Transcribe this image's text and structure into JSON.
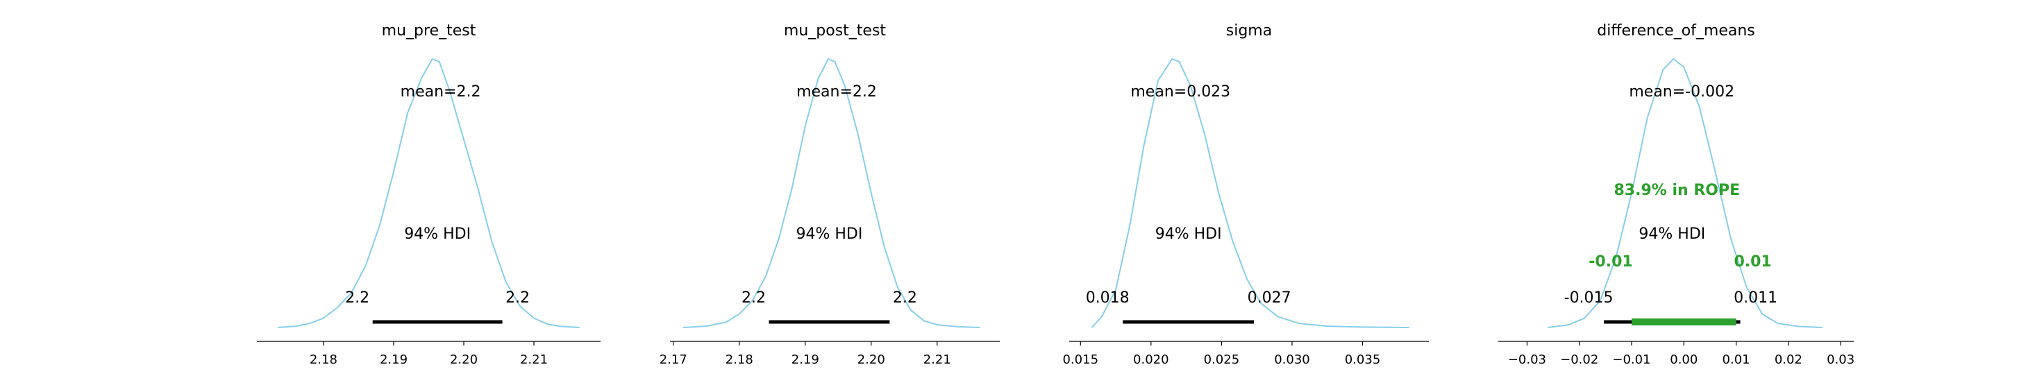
{
  "chart_data": [
    {
      "type": "area",
      "title": "mu_pre_test",
      "mean_label": "mean=2.2",
      "hdi_label": "94% HDI",
      "hdi": [
        2.187,
        2.2055
      ],
      "hdi_low_label": "2.2",
      "hdi_high_label": "2.2",
      "xlim": [
        2.1705,
        2.2195
      ],
      "xticks": [
        2.18,
        2.19,
        2.2,
        2.21
      ],
      "xtick_labels": [
        "2.18",
        "2.19",
        "2.20",
        "2.21"
      ],
      "density": {
        "x": [
          2.1735,
          2.176,
          2.178,
          2.18,
          2.182,
          2.184,
          2.186,
          2.188,
          2.19,
          2.192,
          2.194,
          2.1955,
          2.1965,
          2.198,
          2.2,
          2.202,
          2.204,
          2.206,
          2.208,
          2.21,
          2.212,
          2.214,
          2.2165
        ],
        "y": [
          0.0,
          0.005,
          0.015,
          0.035,
          0.075,
          0.13,
          0.23,
          0.38,
          0.58,
          0.8,
          0.93,
          1.0,
          0.99,
          0.88,
          0.7,
          0.52,
          0.32,
          0.17,
          0.08,
          0.035,
          0.012,
          0.004,
          0.0
        ]
      }
    },
    {
      "type": "area",
      "title": "mu_post_test",
      "mean_label": "mean=2.2",
      "hdi_label": "94% HDI",
      "hdi": [
        2.1845,
        2.2028
      ],
      "hdi_low_label": "2.2",
      "hdi_high_label": "2.2",
      "xlim": [
        2.1695,
        2.2195
      ],
      "xticks": [
        2.17,
        2.18,
        2.19,
        2.2,
        2.21
      ],
      "xtick_labels": [
        "2.17",
        "2.18",
        "2.19",
        "2.20",
        "2.21"
      ],
      "density": {
        "x": [
          2.1715,
          2.175,
          2.178,
          2.18,
          2.182,
          2.184,
          2.186,
          2.188,
          2.19,
          2.192,
          2.1935,
          2.1945,
          2.196,
          2.198,
          2.2,
          2.202,
          2.204,
          2.206,
          2.208,
          2.21,
          2.213,
          2.2165
        ],
        "y": [
          0.0,
          0.005,
          0.02,
          0.05,
          0.1,
          0.19,
          0.33,
          0.52,
          0.75,
          0.93,
          1.0,
          0.99,
          0.9,
          0.72,
          0.5,
          0.3,
          0.15,
          0.065,
          0.025,
          0.01,
          0.003,
          0.0
        ]
      }
    },
    {
      "type": "area",
      "title": "sigma",
      "mean_label": "mean=0.023",
      "hdi_label": "94% HDI",
      "hdi": [
        0.018,
        0.0273
      ],
      "hdi_low_label": "0.018",
      "hdi_high_label": "0.027",
      "xlim": [
        0.0142,
        0.0397
      ],
      "xticks": [
        0.015,
        0.02,
        0.025,
        0.03,
        0.035
      ],
      "xtick_labels": [
        "0.015",
        "0.020",
        "0.025",
        "0.030",
        "0.035"
      ],
      "density": {
        "x": [
          0.0158,
          0.0165,
          0.0175,
          0.0185,
          0.0195,
          0.0205,
          0.0215,
          0.022,
          0.0228,
          0.0238,
          0.0248,
          0.0258,
          0.0268,
          0.0278,
          0.029,
          0.0305,
          0.0325,
          0.035,
          0.0383
        ],
        "y": [
          0.0,
          0.04,
          0.14,
          0.38,
          0.68,
          0.92,
          1.0,
          0.99,
          0.9,
          0.72,
          0.5,
          0.32,
          0.18,
          0.09,
          0.04,
          0.015,
          0.005,
          0.0015,
          0.0
        ]
      }
    },
    {
      "type": "area",
      "title": "difference_of_means",
      "mean_label": "mean=-0.002",
      "hdi_label": "94% HDI",
      "hdi": [
        -0.0153,
        0.0108
      ],
      "hdi_low_label": "-0.015",
      "hdi_high_label": "0.011",
      "rope": [
        -0.01,
        0.01
      ],
      "rope_label": "83.9% in ROPE",
      "rope_low_label": "-0.01",
      "rope_high_label": "0.01",
      "xlim": [
        -0.0355,
        0.0325
      ],
      "xticks": [
        -0.03,
        -0.02,
        -0.01,
        0.0,
        0.01,
        0.02,
        0.03
      ],
      "xtick_labels": [
        "−0.03",
        "−0.02",
        "−0.01",
        "0.00",
        "0.01",
        "0.02",
        "0.03"
      ],
      "density": {
        "x": [
          -0.026,
          -0.022,
          -0.019,
          -0.016,
          -0.013,
          -0.01,
          -0.007,
          -0.004,
          -0.002,
          0.0,
          0.003,
          0.006,
          0.009,
          0.012,
          0.015,
          0.018,
          0.022,
          0.0265
        ],
        "y": [
          0.0,
          0.01,
          0.035,
          0.1,
          0.26,
          0.5,
          0.78,
          0.96,
          1.0,
          0.97,
          0.82,
          0.58,
          0.33,
          0.15,
          0.05,
          0.015,
          0.004,
          0.0
        ]
      }
    }
  ]
}
